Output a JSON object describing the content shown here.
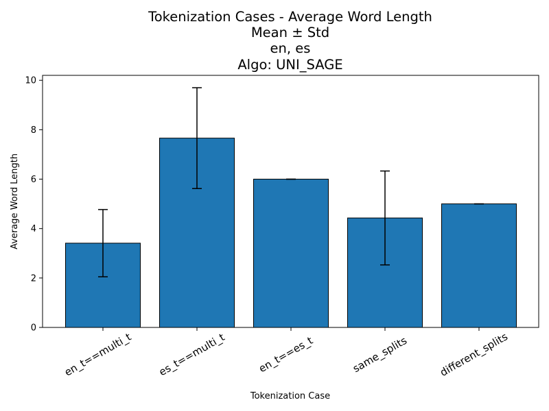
{
  "chart_data": {
    "type": "bar",
    "title_lines": [
      "Tokenization Cases - Average Word Length",
      "Mean ± Std",
      "en, es",
      "Algo: UNI_SAGE"
    ],
    "xlabel": "Tokenization Case",
    "ylabel": "Average Word Length",
    "categories": [
      "en_t==multi_t",
      "es_t==multi_t",
      "en_t==es_t",
      "same_splits",
      "different_splits"
    ],
    "values": [
      3.41,
      7.66,
      6.0,
      4.43,
      5.0
    ],
    "errors": [
      1.36,
      2.04,
      0.0,
      1.9,
      0.0
    ],
    "ylim": [
      0,
      10.2
    ],
    "yticks": [
      0,
      2,
      4,
      6,
      8,
      10
    ],
    "bar_color": "#1f77b4",
    "edge_color": "#000000",
    "error_color": "#000000",
    "grid": false,
    "legend": "none"
  }
}
